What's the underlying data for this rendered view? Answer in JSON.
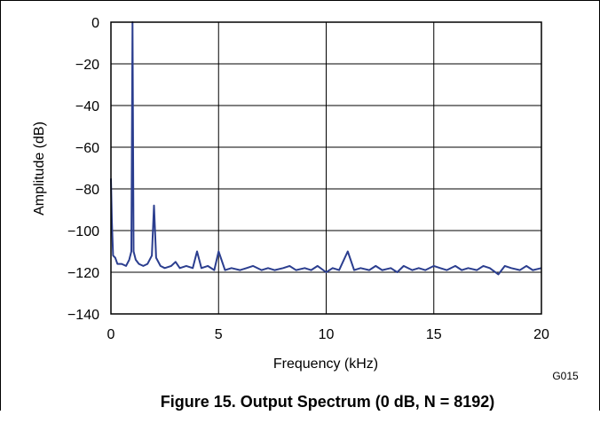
{
  "chart_data": {
    "type": "line",
    "title": "Figure 15. Output Spectrum (0 dB, N = 8192)",
    "xlabel": "Frequency (kHz)",
    "ylabel": "Amplitude (dB)",
    "xlim": [
      0,
      20
    ],
    "ylim": [
      -140,
      0
    ],
    "xticks": [
      "0",
      "5",
      "10",
      "15",
      "20"
    ],
    "yticks": [
      "0",
      "−20",
      "−40",
      "−60",
      "−80",
      "−100",
      "−120",
      "−140"
    ],
    "grid": true,
    "line_color": "#2b3e8f",
    "figure_code": "G015",
    "series": [
      {
        "x": [
          0,
          0.04,
          0.1,
          0.2,
          0.3,
          0.5,
          0.7,
          0.85,
          0.95,
          1.0,
          1.05,
          1.15,
          1.3,
          1.5,
          1.7,
          1.9,
          2.0,
          2.1,
          2.3,
          2.5,
          2.8,
          3.0,
          3.2,
          3.5,
          3.8,
          4.0,
          4.2,
          4.5,
          4.8,
          5.0,
          5.3,
          5.6,
          6.0,
          6.3,
          6.6,
          7.0,
          7.3,
          7.6,
          8.0,
          8.3,
          8.6,
          9.0,
          9.3,
          9.6,
          10.0,
          10.3,
          10.6,
          11.0,
          11.3,
          11.6,
          12.0,
          12.3,
          12.6,
          13.0,
          13.3,
          13.6,
          14.0,
          14.3,
          14.6,
          15.0,
          15.3,
          15.6,
          16.0,
          16.3,
          16.6,
          17.0,
          17.3,
          17.6,
          18.0,
          18.3,
          18.6,
          19.0,
          19.3,
          19.6,
          20.0
        ],
        "y": [
          -75,
          -95,
          -112,
          -113,
          -116,
          -116,
          -117,
          -114,
          -110,
          0,
          -110,
          -114,
          -116,
          -117,
          -116,
          -112,
          -88,
          -113,
          -117,
          -118,
          -117,
          -115,
          -118,
          -117,
          -118,
          -110,
          -118,
          -117,
          -119,
          -110,
          -119,
          -118,
          -119,
          -118,
          -117,
          -119,
          -118,
          -119,
          -118,
          -117,
          -119,
          -118,
          -119,
          -117,
          -120,
          -118,
          -119,
          -110,
          -119,
          -118,
          -119,
          -117,
          -119,
          -118,
          -120,
          -117,
          -119,
          -118,
          -119,
          -117,
          -118,
          -119,
          -117,
          -119,
          -118,
          -119,
          -117,
          -118,
          -121,
          -117,
          -118,
          -119,
          -117,
          -119,
          -118
        ]
      }
    ]
  }
}
